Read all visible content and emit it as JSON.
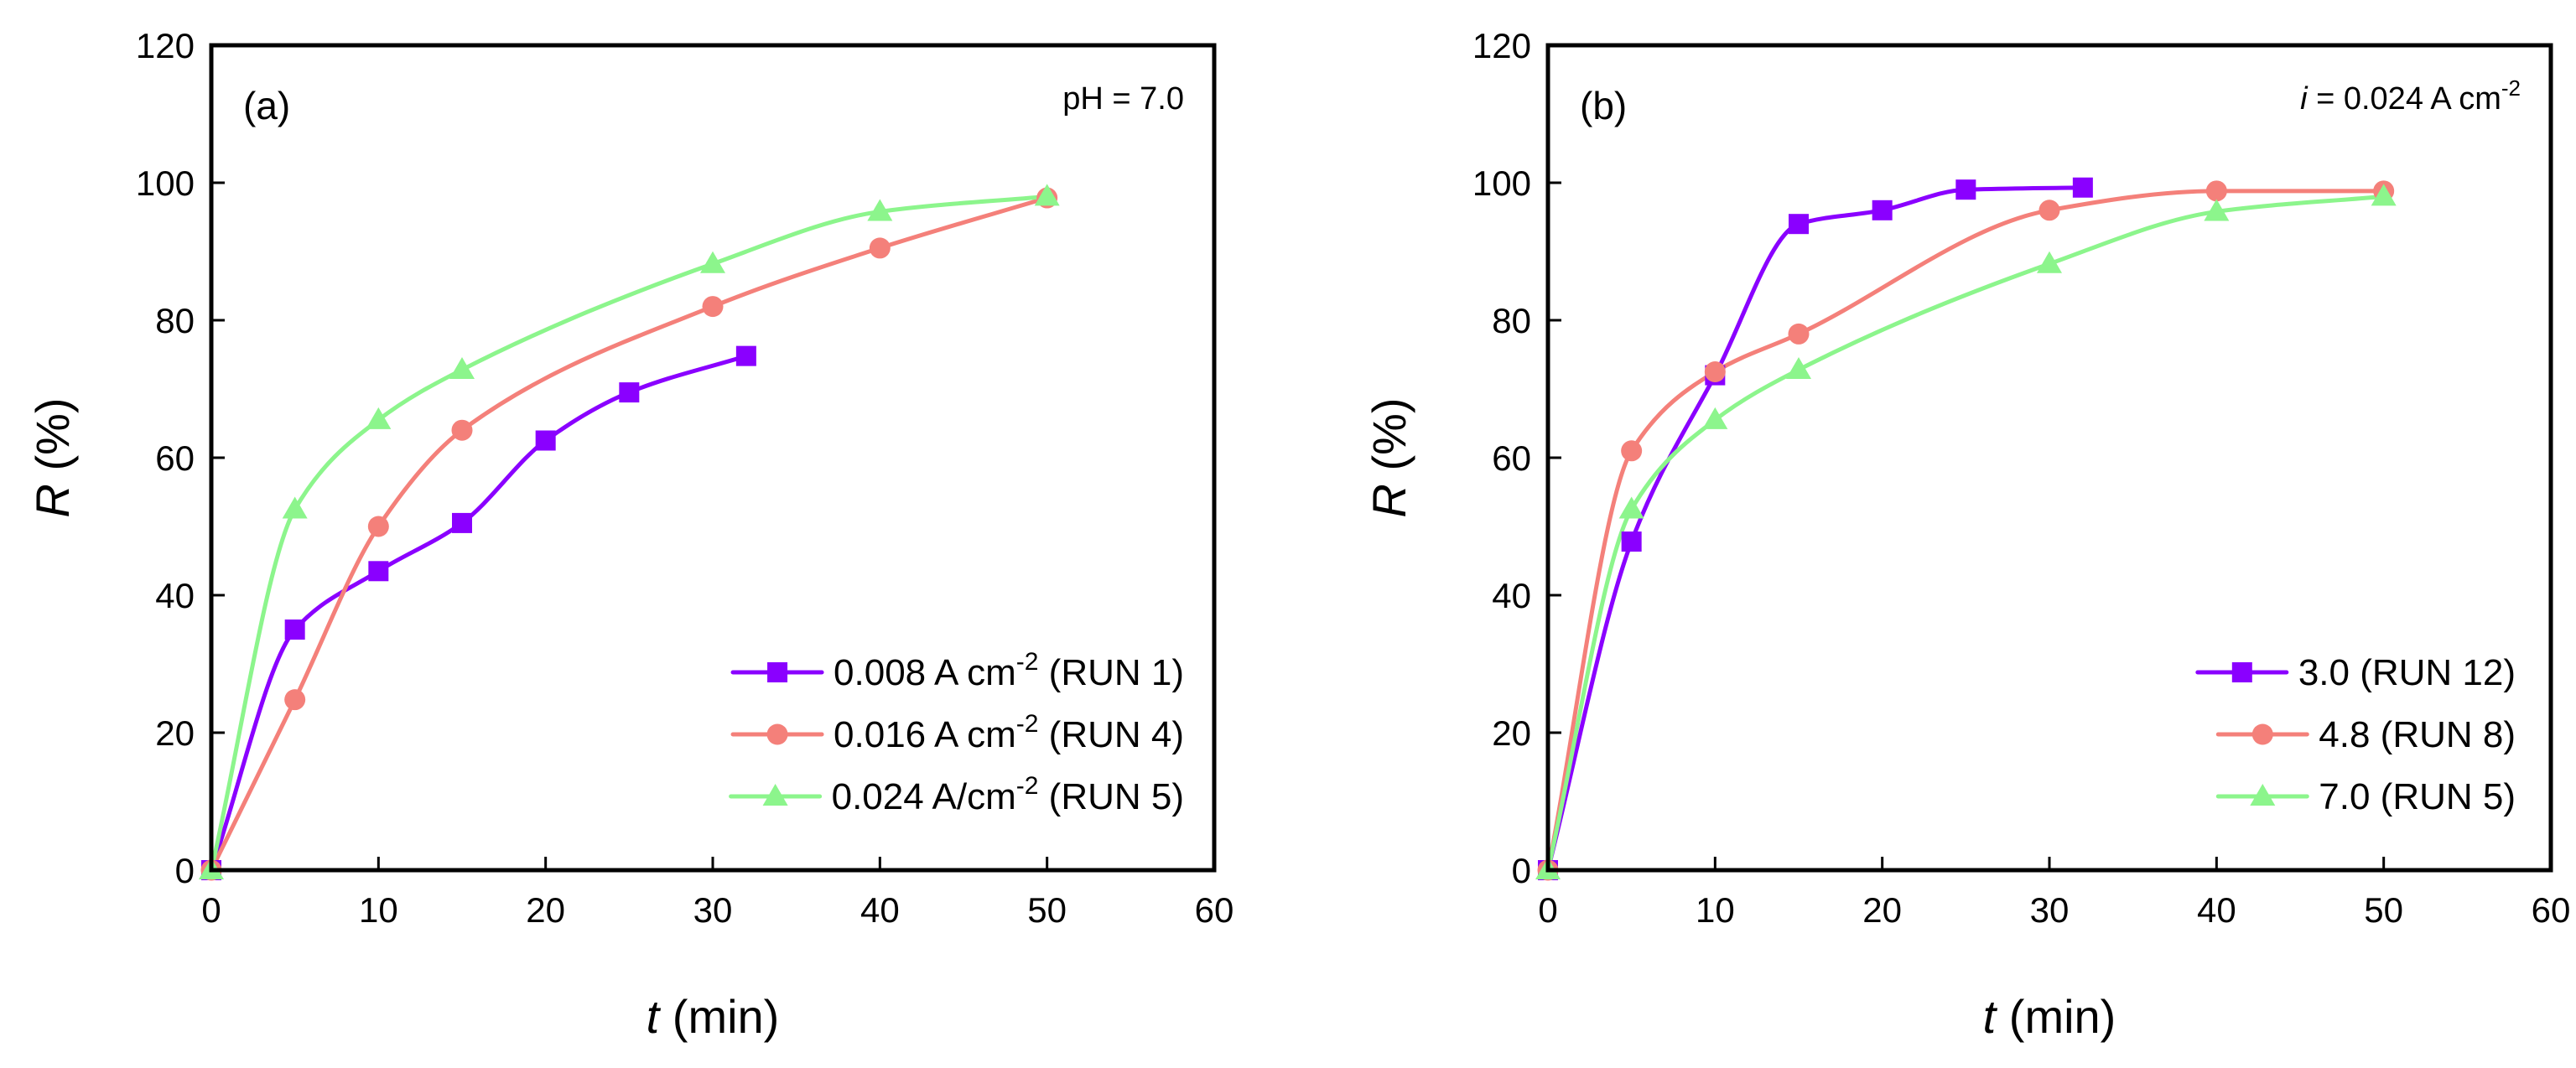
{
  "chart_data": [
    {
      "type": "line",
      "panel_label": "(a)",
      "annotation": {
        "text": "pH = 7.0"
      },
      "xlabel": {
        "var": "t",
        "rest": " (min)"
      },
      "ylabel": {
        "var": "R",
        "rest": " (%)"
      },
      "xlim": [
        0,
        60
      ],
      "ylim": [
        0,
        120
      ],
      "xticks": [
        0,
        10,
        20,
        30,
        40,
        50,
        60
      ],
      "yticks": [
        0,
        20,
        40,
        60,
        80,
        100,
        120
      ],
      "legend_position": "bottom-right",
      "series": [
        {
          "name": "0.008 A cm-2 (RUN 1)",
          "legend": {
            "main": "0.008 A cm",
            "sup": "-2",
            "tail": " (RUN 1)"
          },
          "marker": "square",
          "color": "#8a00ff",
          "x": [
            0,
            5,
            10,
            15,
            20,
            25,
            32
          ],
          "y": [
            0,
            35,
            43.5,
            50.5,
            62.5,
            69.5,
            74.8
          ]
        },
        {
          "name": "0.016 A cm-2 (RUN 4)",
          "legend": {
            "main": "0.016 A cm",
            "sup": "-2",
            "tail": " (RUN 4)"
          },
          "marker": "circle",
          "color": "#f4807a",
          "x": [
            0,
            5,
            10,
            15,
            30,
            40,
            50
          ],
          "y": [
            0,
            24.8,
            50,
            64,
            82,
            90.5,
            97.8
          ]
        },
        {
          "name": "0.024 A/cm-2 (RUN 5)",
          "legend": {
            "main": "0.024 A/cm",
            "sup": "-2",
            "tail": " (RUN 5)"
          },
          "marker": "triangle",
          "color": "#8cf58c",
          "x": [
            0,
            5,
            10,
            15,
            30,
            40,
            50
          ],
          "y": [
            0,
            52.5,
            65.5,
            72.8,
            88.2,
            95.8,
            98
          ]
        }
      ]
    },
    {
      "type": "line",
      "panel_label": "(b)",
      "annotation": {
        "var": "i",
        "text": " = 0.024 A cm",
        "sup": "-2"
      },
      "xlabel": {
        "var": "t",
        "rest": " (min)"
      },
      "ylabel": {
        "var": "R",
        "rest": " (%)"
      },
      "xlim": [
        0,
        60
      ],
      "ylim": [
        0,
        120
      ],
      "xticks": [
        0,
        10,
        20,
        30,
        40,
        50,
        60
      ],
      "yticks": [
        0,
        20,
        40,
        60,
        80,
        100,
        120
      ],
      "legend_position": "bottom-right",
      "series": [
        {
          "name": "3.0 (RUN 12)",
          "legend": {
            "main": "3.0 (RUN 12)",
            "sup": "",
            "tail": ""
          },
          "marker": "square",
          "color": "#8a00ff",
          "x": [
            0,
            5,
            10,
            15,
            20,
            25,
            32
          ],
          "y": [
            0,
            47.8,
            72,
            94,
            96,
            99,
            99.3
          ]
        },
        {
          "name": "4.8 (RUN 8)",
          "legend": {
            "main": "4.8 (RUN 8)",
            "sup": "",
            "tail": ""
          },
          "marker": "circle",
          "color": "#f4807a",
          "x": [
            0,
            5,
            10,
            15,
            30,
            40,
            50
          ],
          "y": [
            0,
            61,
            72.5,
            78,
            96,
            98.8,
            98.8
          ]
        },
        {
          "name": "7.0 (RUN 5)",
          "legend": {
            "main": "7.0 (RUN 5)",
            "sup": "",
            "tail": ""
          },
          "marker": "triangle",
          "color": "#8cf58c",
          "x": [
            0,
            5,
            10,
            15,
            30,
            40,
            50
          ],
          "y": [
            0,
            52.5,
            65.5,
            72.8,
            88.2,
            95.8,
            98
          ]
        }
      ]
    }
  ]
}
